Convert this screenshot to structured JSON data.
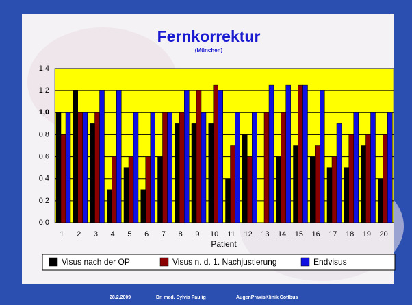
{
  "chart_data": {
    "type": "bar",
    "title": "Fernkorrektur",
    "subtitle": "(München)",
    "x_label": "Patient",
    "categories": [
      "1",
      "2",
      "3",
      "4",
      "5",
      "6",
      "7",
      "8",
      "9",
      "10",
      "11",
      "12",
      "13",
      "14",
      "15",
      "16",
      "17",
      "18",
      "19",
      "20"
    ],
    "series": [
      {
        "name": "Visus nach der OP",
        "color": "#000000",
        "values": [
          1.0,
          1.2,
          0.9,
          0.3,
          0.5,
          0.3,
          0.6,
          0.9,
          0.9,
          0.9,
          0.4,
          0.8,
          null,
          0.6,
          0.7,
          0.6,
          0.5,
          0.5,
          0.7,
          0.4
        ]
      },
      {
        "name": "Visus n. d. 1. Nachjustierung",
        "color": "#8b0000",
        "values": [
          0.8,
          1.0,
          1.0,
          0.6,
          0.6,
          0.6,
          1.0,
          1.0,
          1.2,
          1.25,
          0.7,
          0.6,
          1.0,
          1.0,
          1.25,
          0.7,
          0.6,
          0.8,
          0.8,
          0.8
        ]
      },
      {
        "name": "Endvisus",
        "color": "#1010e0",
        "values": [
          1.0,
          1.0,
          1.2,
          1.2,
          1.0,
          1.0,
          1.0,
          1.2,
          1.0,
          1.2,
          1.0,
          1.0,
          1.25,
          1.25,
          1.25,
          1.2,
          0.9,
          1.0,
          1.0,
          1.0
        ]
      }
    ],
    "ylim": [
      0,
      1.4
    ],
    "yticks": [
      {
        "value": 0,
        "label": "0,0"
      },
      {
        "value": 0.2,
        "label": "0,2"
      },
      {
        "value": 0.4,
        "label": "0,4"
      },
      {
        "value": 0.6,
        "label": "0,6"
      },
      {
        "value": 0.8,
        "label": "0,8"
      },
      {
        "value": 1.0,
        "label": "1,0"
      },
      {
        "value": 1.2,
        "label": "1,2"
      },
      {
        "value": 1.4,
        "label": "1,4"
      }
    ],
    "grid": true,
    "legend": "bottom",
    "plot_background": "#ffff00"
  },
  "footer": [
    "28.2.2009",
    "Dr. med. Sylvia Paulig",
    "AugenPraxisKlinik Cottbus"
  ]
}
